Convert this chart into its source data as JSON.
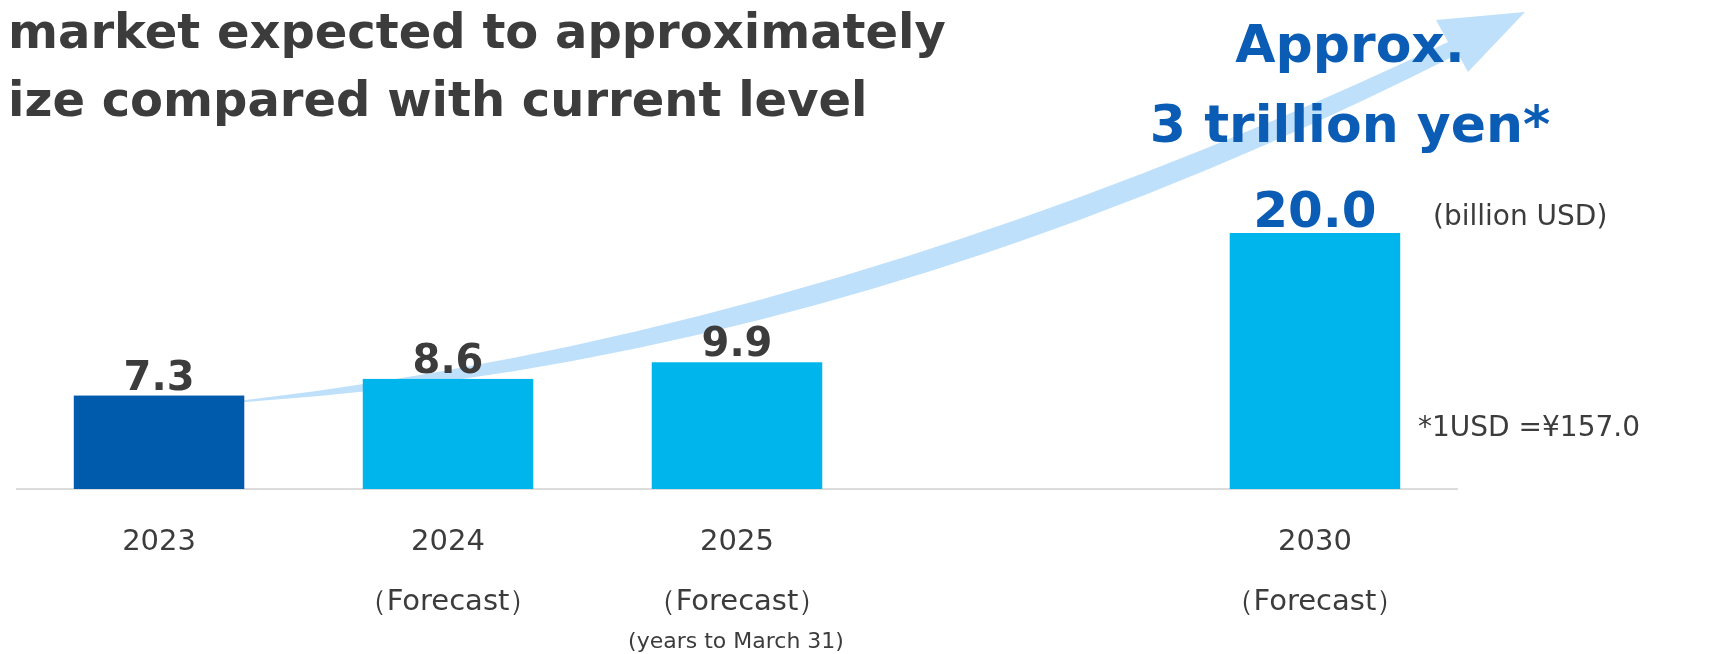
{
  "chart_data": {
    "type": "bar",
    "title": "market expected to approximately\nize compared with current level",
    "categories": [
      "2023",
      "2024\n（Forecast）",
      "2025\n（Forecast）",
      null,
      "2030\n（Forecast）"
    ],
    "values": [
      7.3,
      8.6,
      9.9,
      null,
      20.0
    ],
    "colors": [
      "#005bac",
      "#00b5eb",
      "#00b5eb",
      null,
      "#00b5eb"
    ],
    "value_labels": [
      "7.3",
      "8.6",
      "9.9",
      null,
      "20.0"
    ],
    "annotations": [
      "Approx.\n3 trillion yen*",
      "(billion USD)",
      "*1USD =¥157.0",
      "(years to March 31)"
    ]
  }
}
